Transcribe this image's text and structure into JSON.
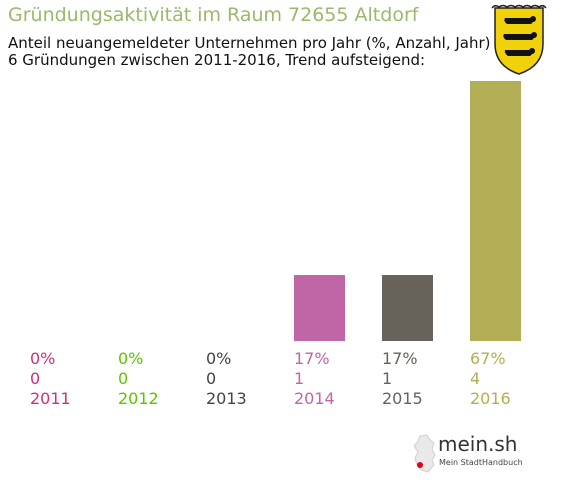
{
  "title": "Gründungsaktivität im Raum 72655 Altdorf",
  "subtitle_line1": "Anteil neuangemeldeter Unternehmen pro Jahr (%, Anzahl, Jahr)",
  "subtitle_line2": "6 Gründungen zwischen 2011-2016, Trend aufsteigend:",
  "brand": {
    "name": "mein.sh",
    "tagline": "Mein StadtHandbuch"
  },
  "chart_data": {
    "type": "bar",
    "categories": [
      "2011",
      "2012",
      "2013",
      "2014",
      "2015",
      "2016"
    ],
    "values": [
      0,
      0,
      0,
      17,
      17,
      67
    ],
    "counts": [
      0,
      0,
      0,
      1,
      1,
      4
    ],
    "percent_labels": [
      "0%",
      "0%",
      "0%",
      "17%",
      "17%",
      "67%"
    ],
    "colors": [
      "#c8327c",
      "#5cc400",
      "#444444",
      "#c065a5",
      "#67635a",
      "#b2ae55"
    ],
    "ylim": [
      0,
      67
    ],
    "grid": false,
    "legend": "none"
  }
}
